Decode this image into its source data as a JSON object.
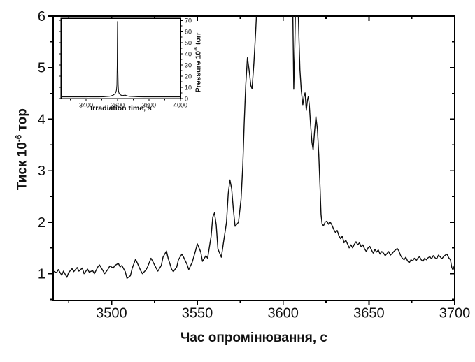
{
  "figure": {
    "background": "#ffffff",
    "curve_color": "#0d0d0d",
    "frame_color": "#000000",
    "text_color": "#111111"
  },
  "chart_data": [
    {
      "id": "main",
      "type": "line",
      "title": "",
      "xlabel": "Час опромінювання, с",
      "ylabel_text": "Тиск 10⁻⁶ тор",
      "ylabel_base": "Тиск 10",
      "ylabel_sup": "-6",
      "ylabel_rest": " тор",
      "xlim": [
        3466,
        3700
      ],
      "ylim": [
        0.48,
        6
      ],
      "x_ticks_major": [
        3500,
        3550,
        3600,
        3650,
        3700
      ],
      "x_ticks_minor": [
        3475,
        3525,
        3575,
        3625,
        3675
      ],
      "y_ticks_major": [
        1,
        2,
        3,
        4,
        5,
        6
      ],
      "y_ticks_minor": [
        0.5,
        1.5,
        2.5,
        3.5,
        4.5,
        5.5
      ],
      "grid": false,
      "legend": null,
      "note": "curve clipped at top of frame; values 7.0 denote off-scale (>6) segment of the peak",
      "points": [
        [
          3466,
          1.05
        ],
        [
          3468,
          1.02
        ],
        [
          3469,
          1.08
        ],
        [
          3471,
          0.97
        ],
        [
          3472,
          1.05
        ],
        [
          3474,
          0.93
        ],
        [
          3475,
          1.02
        ],
        [
          3477,
          1.1
        ],
        [
          3478,
          1.04
        ],
        [
          3480,
          1.12
        ],
        [
          3481,
          1.05
        ],
        [
          3483,
          1.11
        ],
        [
          3484,
          1.0
        ],
        [
          3486,
          1.09
        ],
        [
          3487,
          1.03
        ],
        [
          3489,
          1.06
        ],
        [
          3490,
          1.0
        ],
        [
          3492,
          1.13
        ],
        [
          3493,
          1.17
        ],
        [
          3495,
          1.06
        ],
        [
          3496,
          1.0
        ],
        [
          3498,
          1.09
        ],
        [
          3499,
          1.15
        ],
        [
          3501,
          1.11
        ],
        [
          3502,
          1.16
        ],
        [
          3504,
          1.2
        ],
        [
          3505,
          1.13
        ],
        [
          3506,
          1.16
        ],
        [
          3508,
          1.04
        ],
        [
          3509,
          0.91
        ],
        [
          3511,
          0.96
        ],
        [
          3512,
          1.1
        ],
        [
          3514,
          1.28
        ],
        [
          3515,
          1.21
        ],
        [
          3517,
          1.06
        ],
        [
          3518,
          1.0
        ],
        [
          3520,
          1.07
        ],
        [
          3521,
          1.13
        ],
        [
          3523,
          1.3
        ],
        [
          3524,
          1.24
        ],
        [
          3526,
          1.11
        ],
        [
          3527,
          1.05
        ],
        [
          3529,
          1.16
        ],
        [
          3530,
          1.32
        ],
        [
          3532,
          1.44
        ],
        [
          3533,
          1.3
        ],
        [
          3535,
          1.09
        ],
        [
          3536,
          1.04
        ],
        [
          3538,
          1.13
        ],
        [
          3539,
          1.27
        ],
        [
          3541,
          1.38
        ],
        [
          3542,
          1.32
        ],
        [
          3544,
          1.18
        ],
        [
          3545,
          1.08
        ],
        [
          3547,
          1.22
        ],
        [
          3549,
          1.45
        ],
        [
          3550,
          1.58
        ],
        [
          3552,
          1.42
        ],
        [
          3553,
          1.24
        ],
        [
          3555,
          1.35
        ],
        [
          3556,
          1.3
        ],
        [
          3558,
          1.72
        ],
        [
          3559,
          2.1
        ],
        [
          3560,
          2.18
        ],
        [
          3561,
          1.95
        ],
        [
          3562,
          1.48
        ],
        [
          3564,
          1.32
        ],
        [
          3565,
          1.55
        ],
        [
          3567,
          2.0
        ],
        [
          3568,
          2.55
        ],
        [
          3569,
          2.82
        ],
        [
          3570,
          2.65
        ],
        [
          3571,
          2.25
        ],
        [
          3572,
          1.92
        ],
        [
          3574,
          2.0
        ],
        [
          3575.5,
          2.45
        ],
        [
          3576.5,
          3.1
        ],
        [
          3577.3,
          3.9
        ],
        [
          3578.2,
          4.65
        ],
        [
          3579.2,
          5.19
        ],
        [
          3580.2,
          4.95
        ],
        [
          3581.2,
          4.65
        ],
        [
          3581.9,
          4.59
        ],
        [
          3583,
          5.1
        ],
        [
          3584,
          5.7
        ],
        [
          3584.6,
          6.1
        ],
        [
          3585.2,
          7.0
        ],
        [
          3590,
          7.0
        ],
        [
          3595,
          7.0
        ],
        [
          3600,
          7.0
        ],
        [
          3605.2,
          7.0
        ],
        [
          3605.6,
          6.2
        ],
        [
          3606.2,
          4.58
        ],
        [
          3606.8,
          5.4
        ],
        [
          3607.3,
          6.3
        ],
        [
          3607.8,
          7.0
        ],
        [
          3608.3,
          7.0
        ],
        [
          3608.8,
          6.1
        ],
        [
          3609.3,
          5.5
        ],
        [
          3609.8,
          4.96
        ],
        [
          3610.6,
          4.55
        ],
        [
          3611.5,
          4.28
        ],
        [
          3612.2,
          4.45
        ],
        [
          3612.8,
          4.51
        ],
        [
          3613.5,
          4.17
        ],
        [
          3614.2,
          4.38
        ],
        [
          3614.7,
          4.44
        ],
        [
          3615.3,
          4.26
        ],
        [
          3616,
          3.9
        ],
        [
          3616.8,
          3.55
        ],
        [
          3617.5,
          3.4
        ],
        [
          3618.3,
          3.75
        ],
        [
          3619.1,
          4.05
        ],
        [
          3620,
          3.8
        ],
        [
          3620.8,
          3.3
        ],
        [
          3621.5,
          2.7
        ],
        [
          3622.1,
          2.15
        ],
        [
          3622.7,
          1.97
        ],
        [
          3623.5,
          1.93
        ],
        [
          3624.5,
          2.0
        ],
        [
          3625.5,
          2.02
        ],
        [
          3626.5,
          1.96
        ],
        [
          3627.5,
          2.0
        ],
        [
          3628.5,
          1.94
        ],
        [
          3629.5,
          1.86
        ],
        [
          3630.5,
          1.8
        ],
        [
          3631.5,
          1.84
        ],
        [
          3632.5,
          1.74
        ],
        [
          3633.5,
          1.68
        ],
        [
          3634.5,
          1.73
        ],
        [
          3635.5,
          1.6
        ],
        [
          3636.5,
          1.65
        ],
        [
          3637.5,
          1.58
        ],
        [
          3638.5,
          1.5
        ],
        [
          3639.5,
          1.56
        ],
        [
          3640.5,
          1.5
        ],
        [
          3641.5,
          1.57
        ],
        [
          3642.5,
          1.62
        ],
        [
          3643.5,
          1.56
        ],
        [
          3644.5,
          1.6
        ],
        [
          3645.5,
          1.52
        ],
        [
          3646.5,
          1.56
        ],
        [
          3647.5,
          1.48
        ],
        [
          3648.5,
          1.43
        ],
        [
          3649.5,
          1.5
        ],
        [
          3650.5,
          1.53
        ],
        [
          3651.5,
          1.46
        ],
        [
          3652.5,
          1.4
        ],
        [
          3653.5,
          1.47
        ],
        [
          3654.5,
          1.42
        ],
        [
          3655.5,
          1.46
        ],
        [
          3656.5,
          1.38
        ],
        [
          3657.5,
          1.43
        ],
        [
          3658.5,
          1.4
        ],
        [
          3659.5,
          1.35
        ],
        [
          3660.5,
          1.39
        ],
        [
          3661.5,
          1.43
        ],
        [
          3662.5,
          1.36
        ],
        [
          3663.5,
          1.39
        ],
        [
          3664.5,
          1.43
        ],
        [
          3665.5,
          1.46
        ],
        [
          3666.5,
          1.49
        ],
        [
          3667.5,
          1.44
        ],
        [
          3668.5,
          1.35
        ],
        [
          3669.5,
          1.3
        ],
        [
          3670.5,
          1.27
        ],
        [
          3671.5,
          1.32
        ],
        [
          3672.5,
          1.25
        ],
        [
          3673.5,
          1.21
        ],
        [
          3674.5,
          1.27
        ],
        [
          3675.5,
          1.25
        ],
        [
          3676.5,
          1.3
        ],
        [
          3677.5,
          1.25
        ],
        [
          3678.5,
          1.3
        ],
        [
          3679.5,
          1.33
        ],
        [
          3680.5,
          1.27
        ],
        [
          3681.5,
          1.24
        ],
        [
          3682.5,
          1.3
        ],
        [
          3683.5,
          1.27
        ],
        [
          3684.5,
          1.31
        ],
        [
          3685.5,
          1.33
        ],
        [
          3686.5,
          1.29
        ],
        [
          3687.5,
          1.35
        ],
        [
          3688.5,
          1.31
        ],
        [
          3689.5,
          1.29
        ],
        [
          3690.5,
          1.36
        ],
        [
          3691.5,
          1.33
        ],
        [
          3692.5,
          1.29
        ],
        [
          3693.5,
          1.33
        ],
        [
          3694.5,
          1.36
        ],
        [
          3695.5,
          1.38
        ],
        [
          3696.5,
          1.31
        ],
        [
          3697.5,
          1.27
        ],
        [
          3698.3,
          1.12
        ],
        [
          3699,
          1.07
        ],
        [
          3700,
          1.18
        ]
      ]
    },
    {
      "id": "inset",
      "type": "line",
      "title": "",
      "xlabel": "Irradiation time, s",
      "ylabel_text": "Pressure 10⁻⁶ torr",
      "ylabel_base": "Pressure 10",
      "ylabel_sup": "-6",
      "ylabel_rest": " torr",
      "xlim": [
        3240,
        4000
      ],
      "ylim": [
        0,
        72
      ],
      "x_ticks_major": [
        3400,
        3600,
        3800,
        4000
      ],
      "x_ticks_minor": [
        3300,
        3500,
        3700,
        3900
      ],
      "y_ticks_major": [
        0,
        10,
        20,
        30,
        40,
        50,
        60,
        70
      ],
      "y_ticks_minor": [
        5,
        15,
        25,
        35,
        45,
        55,
        65
      ],
      "grid": false,
      "legend": null,
      "y_axis_side": "right",
      "points": [
        [
          3240,
          1.5
        ],
        [
          3280,
          1.6
        ],
        [
          3320,
          1.5
        ],
        [
          3360,
          1.6
        ],
        [
          3400,
          1.5
        ],
        [
          3440,
          1.6
        ],
        [
          3480,
          1.5
        ],
        [
          3510,
          1.6
        ],
        [
          3530,
          1.8
        ],
        [
          3550,
          2.1
        ],
        [
          3560,
          2.4
        ],
        [
          3570,
          2.9
        ],
        [
          3578,
          3.6
        ],
        [
          3584,
          4.4
        ],
        [
          3589,
          5.5
        ],
        [
          3593,
          7.5
        ],
        [
          3596,
          12
        ],
        [
          3598,
          30
        ],
        [
          3599,
          52
        ],
        [
          3600,
          69
        ],
        [
          3601,
          52
        ],
        [
          3602,
          25
        ],
        [
          3604,
          12
        ],
        [
          3606,
          7
        ],
        [
          3609,
          5
        ],
        [
          3613,
          4
        ],
        [
          3620,
          3.2
        ],
        [
          3630,
          2.6
        ],
        [
          3640,
          2.9
        ],
        [
          3650,
          3.0
        ],
        [
          3658,
          2.5
        ],
        [
          3670,
          2.1
        ],
        [
          3685,
          1.9
        ],
        [
          3700,
          1.8
        ],
        [
          3730,
          1.6
        ],
        [
          3770,
          1.5
        ],
        [
          3820,
          1.5
        ],
        [
          3880,
          1.5
        ],
        [
          3940,
          1.5
        ],
        [
          4000,
          1.5
        ]
      ]
    }
  ]
}
